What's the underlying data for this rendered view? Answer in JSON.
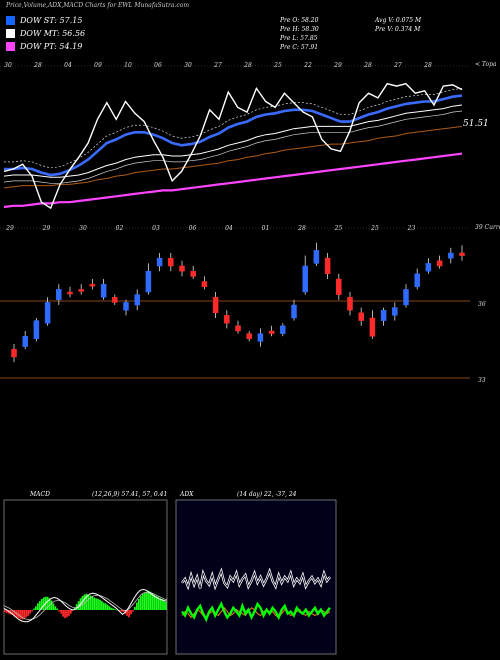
{
  "header": {
    "title": "Price,Volume,ADX,MACD Charts for EWL MunafaSutra.com"
  },
  "legend": [
    {
      "label": "DOW ST: 57.15",
      "color": "#1565ff"
    },
    {
      "label": "DOW MT: 56.56",
      "color": "#ffffff"
    },
    {
      "label": "DOW PT: 54.19",
      "color": "#ff44ff"
    }
  ],
  "stats": {
    "col1": [
      "Pre O: 58.20",
      "Pre H: 58.30",
      "Pre L: 57.85",
      "Pre C: 57.91"
    ],
    "col2": [
      "Avg V: 0.075 M",
      "Pre V: 0.374 M"
    ]
  },
  "chart_data": [
    {
      "type": "line",
      "panel": "price-ema",
      "price_label": "51.51",
      "top_ticks": [
        "30",
        "28",
        "04",
        "09",
        "10",
        "06",
        "30",
        "27",
        "28",
        "25",
        "22",
        "29",
        "28",
        "27",
        "28"
      ],
      "right_label": "< Topa",
      "series": [
        {
          "name": "close",
          "color": "#ffffff",
          "values": [
            50.6,
            50.8,
            51.2,
            50.2,
            48.0,
            47.5,
            49.5,
            50.7,
            51.8,
            53.0,
            55.0,
            56.4,
            55.0,
            56.5,
            55.5,
            54.8,
            53.2,
            51.8,
            49.8,
            50.6,
            52.0,
            53.6,
            55.8,
            55.0,
            57.3,
            56.0,
            55.6,
            57.6,
            56.5,
            56.0,
            57.2,
            56.4,
            55.6,
            55.2,
            53.3,
            52.5,
            52.3,
            54.0,
            56.4,
            57.2,
            56.8,
            58.0,
            57.8,
            58.0,
            57.2,
            57.4,
            56.2,
            57.8,
            57.9,
            57.5
          ]
        },
        {
          "name": "ema-fast",
          "color": "#3a6bff",
          "values": [
            50.8,
            50.8,
            50.9,
            50.8,
            50.5,
            50.3,
            50.4,
            50.7,
            51.1,
            51.6,
            52.3,
            53.0,
            53.3,
            53.7,
            53.9,
            53.9,
            53.7,
            53.4,
            53.0,
            52.8,
            52.9,
            53.1,
            53.5,
            53.8,
            54.3,
            54.6,
            54.8,
            55.2,
            55.4,
            55.5,
            55.7,
            55.8,
            55.8,
            55.7,
            55.4,
            55.1,
            54.8,
            54.8,
            55.1,
            55.4,
            55.6,
            55.9,
            56.1,
            56.3,
            56.4,
            56.5,
            56.5,
            56.7,
            56.9,
            57.0
          ]
        },
        {
          "name": "ema-mid",
          "color": "#ffffff",
          "values": [
            50.2,
            50.3,
            50.3,
            50.3,
            50.2,
            50.1,
            50.1,
            50.2,
            50.3,
            50.5,
            50.8,
            51.1,
            51.3,
            51.6,
            51.8,
            51.9,
            52.0,
            52.0,
            51.9,
            51.9,
            52.0,
            52.1,
            52.3,
            52.5,
            52.8,
            53.0,
            53.2,
            53.5,
            53.7,
            53.8,
            54.0,
            54.2,
            54.3,
            54.4,
            54.4,
            54.4,
            54.4,
            54.4,
            54.6,
            54.8,
            54.9,
            55.1,
            55.3,
            55.5,
            55.6,
            55.7,
            55.8,
            55.9,
            56.1,
            56.2
          ]
        },
        {
          "name": "ema-slow",
          "color": "#b05a14",
          "values": [
            49.2,
            49.3,
            49.4,
            49.4,
            49.4,
            49.4,
            49.5,
            49.5,
            49.6,
            49.7,
            49.9,
            50.0,
            50.2,
            50.3,
            50.5,
            50.6,
            50.7,
            50.8,
            50.8,
            50.9,
            51.0,
            51.1,
            51.2,
            51.3,
            51.5,
            51.6,
            51.8,
            51.9,
            52.1,
            52.2,
            52.4,
            52.5,
            52.6,
            52.7,
            52.8,
            52.9,
            52.9,
            53.0,
            53.1,
            53.2,
            53.4,
            53.5,
            53.6,
            53.8,
            53.9,
            54.0,
            54.1,
            54.2,
            54.3,
            54.4
          ]
        },
        {
          "name": "ema-long",
          "color": "#ff44ff",
          "values": [
            47.6,
            47.7,
            47.7,
            47.8,
            47.9,
            47.9,
            48.0,
            48.0,
            48.1,
            48.2,
            48.3,
            48.4,
            48.5,
            48.6,
            48.7,
            48.8,
            48.9,
            49.0,
            49.0,
            49.1,
            49.2,
            49.3,
            49.4,
            49.5,
            49.6,
            49.7,
            49.8,
            49.9,
            50.0,
            50.1,
            50.2,
            50.3,
            50.4,
            50.5,
            50.6,
            50.7,
            50.8,
            50.9,
            51.0,
            51.1,
            51.2,
            51.3,
            51.4,
            51.5,
            51.6,
            51.7,
            51.8,
            51.9,
            52.0,
            52.1
          ]
        }
      ]
    },
    {
      "type": "candlestick",
      "panel": "price-candles",
      "top_ticks": [
        "29",
        "29",
        "30",
        "02",
        "03",
        "06",
        "04",
        "01",
        "28",
        "25",
        "25",
        "23"
      ],
      "right_label": "39 Current",
      "y_labels": [
        "36",
        "33"
      ],
      "candles": [
        {
          "o": 35.0,
          "c": 35.3,
          "h": 35.5,
          "l": 34.8,
          "d": "down"
        },
        {
          "o": 35.4,
          "c": 35.8,
          "h": 36.0,
          "l": 35.3,
          "d": "up"
        },
        {
          "o": 35.7,
          "c": 36.4,
          "h": 36.5,
          "l": 35.6,
          "d": "up"
        },
        {
          "o": 36.3,
          "c": 37.1,
          "h": 37.3,
          "l": 36.2,
          "d": "up"
        },
        {
          "o": 37.2,
          "c": 37.6,
          "h": 37.8,
          "l": 37.0,
          "d": "up"
        },
        {
          "o": 37.5,
          "c": 37.5,
          "h": 37.7,
          "l": 37.3,
          "d": "down"
        },
        {
          "o": 37.6,
          "c": 37.6,
          "h": 37.8,
          "l": 37.4,
          "d": "down"
        },
        {
          "o": 37.8,
          "c": 37.8,
          "h": 38.0,
          "l": 37.6,
          "d": "down"
        },
        {
          "o": 37.8,
          "c": 37.3,
          "h": 38.0,
          "l": 37.2,
          "d": "up"
        },
        {
          "o": 37.3,
          "c": 37.1,
          "h": 37.4,
          "l": 37.0,
          "d": "down"
        },
        {
          "o": 37.1,
          "c": 36.8,
          "h": 37.2,
          "l": 36.6,
          "d": "up"
        },
        {
          "o": 37.0,
          "c": 37.4,
          "h": 37.6,
          "l": 36.8,
          "d": "up"
        },
        {
          "o": 37.5,
          "c": 38.3,
          "h": 38.6,
          "l": 37.4,
          "d": "up"
        },
        {
          "o": 38.5,
          "c": 38.8,
          "h": 39.0,
          "l": 38.3,
          "d": "up"
        },
        {
          "o": 38.5,
          "c": 38.8,
          "h": 39.0,
          "l": 38.3,
          "d": "down"
        },
        {
          "o": 38.5,
          "c": 38.3,
          "h": 38.7,
          "l": 38.1,
          "d": "down"
        },
        {
          "o": 38.3,
          "c": 38.1,
          "h": 38.5,
          "l": 38.0,
          "d": "down"
        },
        {
          "o": 37.9,
          "c": 37.7,
          "h": 38.1,
          "l": 37.6,
          "d": "down"
        },
        {
          "o": 37.3,
          "c": 36.7,
          "h": 37.5,
          "l": 36.5,
          "d": "down"
        },
        {
          "o": 36.6,
          "c": 36.3,
          "h": 36.8,
          "l": 36.1,
          "d": "down"
        },
        {
          "o": 36.2,
          "c": 36.0,
          "h": 36.4,
          "l": 35.9,
          "d": "down"
        },
        {
          "o": 35.9,
          "c": 35.7,
          "h": 36.0,
          "l": 35.6,
          "d": "down"
        },
        {
          "o": 35.6,
          "c": 35.9,
          "h": 36.1,
          "l": 35.4,
          "d": "up"
        },
        {
          "o": 36.0,
          "c": 35.9,
          "h": 36.2,
          "l": 35.8,
          "d": "down"
        },
        {
          "o": 35.9,
          "c": 36.2,
          "h": 36.3,
          "l": 35.8,
          "d": "up"
        },
        {
          "o": 36.5,
          "c": 37.0,
          "h": 37.2,
          "l": 36.4,
          "d": "up"
        },
        {
          "o": 37.5,
          "c": 38.5,
          "h": 38.9,
          "l": 37.4,
          "d": "up"
        },
        {
          "o": 38.6,
          "c": 39.1,
          "h": 39.4,
          "l": 38.5,
          "d": "up"
        },
        {
          "o": 38.8,
          "c": 38.2,
          "h": 39.0,
          "l": 38.0,
          "d": "down"
        },
        {
          "o": 38.0,
          "c": 37.4,
          "h": 38.2,
          "l": 37.2,
          "d": "down"
        },
        {
          "o": 37.3,
          "c": 36.8,
          "h": 37.5,
          "l": 36.6,
          "d": "down"
        },
        {
          "o": 36.7,
          "c": 36.4,
          "h": 36.9,
          "l": 36.2,
          "d": "down"
        },
        {
          "o": 36.5,
          "c": 35.8,
          "h": 36.8,
          "l": 35.7,
          "d": "down"
        },
        {
          "o": 36.4,
          "c": 36.8,
          "h": 36.9,
          "l": 36.2,
          "d": "up"
        },
        {
          "o": 36.9,
          "c": 36.6,
          "h": 37.1,
          "l": 36.4,
          "d": "up"
        },
        {
          "o": 37.0,
          "c": 37.6,
          "h": 37.8,
          "l": 36.9,
          "d": "up"
        },
        {
          "o": 37.7,
          "c": 38.2,
          "h": 38.4,
          "l": 37.6,
          "d": "up"
        },
        {
          "o": 38.3,
          "c": 38.6,
          "h": 38.8,
          "l": 38.2,
          "d": "up"
        },
        {
          "o": 38.5,
          "c": 38.7,
          "h": 38.9,
          "l": 38.4,
          "d": "down"
        },
        {
          "o": 38.8,
          "c": 39.0,
          "h": 39.2,
          "l": 38.6,
          "d": "up"
        },
        {
          "o": 39.0,
          "c": 38.9,
          "h": 39.3,
          "l": 38.7,
          "d": "down"
        }
      ]
    },
    {
      "type": "bar",
      "panel": "macd",
      "title": "MACD",
      "params": "(12,26,9) 57.41, 57, 0.41",
      "hist": [
        -0.3,
        -0.4,
        -0.5,
        -0.6,
        -0.7,
        -0.9,
        -1.0,
        -1.1,
        -1.2,
        -1.3,
        -1.2,
        -1.0,
        -0.8,
        -0.5,
        -0.2,
        0.2,
        0.5,
        0.9,
        1.2,
        1.5,
        1.7,
        1.8,
        1.8,
        1.6,
        1.3,
        0.9,
        0.5,
        0.2,
        -0.2,
        -0.5,
        -0.9,
        -1.1,
        -1.0,
        -0.8,
        -0.5,
        -0.1,
        0.3,
        0.8,
        1.2,
        1.6,
        1.9,
        2.1,
        2.2,
        2.1,
        2.0,
        1.9,
        1.7,
        1.6,
        1.5,
        1.4,
        1.2,
        1.0,
        0.9,
        0.7,
        0.5,
        0.3,
        0.2,
        0.1,
        0.0,
        -0.1,
        -0.2,
        -0.3,
        -0.5,
        -0.8,
        -1.0,
        -0.6,
        -0.2,
        0.4,
        1.0,
        1.5,
        1.9,
        2.2,
        2.4,
        2.5,
        2.6,
        2.5,
        2.3,
        2.1,
        1.9,
        1.8,
        1.6,
        1.5,
        1.3,
        1.1
      ],
      "macd_line": [
        0.2,
        0.0,
        -0.3,
        -0.6,
        -1.0,
        -1.3,
        -1.5,
        -1.6,
        -1.6,
        -1.4,
        -1.1,
        -0.6,
        -0.1,
        0.4,
        0.9,
        1.3,
        1.6,
        1.7,
        1.6,
        1.3,
        0.9,
        0.5,
        0.2,
        0.0,
        0.1,
        0.4,
        0.9,
        1.4,
        1.9,
        2.2,
        2.3,
        2.2,
        2.0,
        1.7,
        1.4,
        1.1,
        0.8,
        0.5,
        0.2,
        -0.2,
        -0.6,
        -0.3,
        0.3,
        1.0,
        1.7,
        2.3,
        2.7,
        2.8,
        2.7,
        2.4,
        2.1,
        1.8,
        1.6,
        1.4,
        1.3,
        1.2
      ],
      "signal_line": [
        0.6,
        0.4,
        0.2,
        -0.1,
        -0.4,
        -0.7,
        -1.0,
        -1.2,
        -1.3,
        -1.3,
        -1.2,
        -1.0,
        -0.7,
        -0.3,
        0.1,
        0.5,
        0.9,
        1.2,
        1.3,
        1.3,
        1.1,
        0.9,
        0.6,
        0.4,
        0.3,
        0.4,
        0.6,
        0.9,
        1.3,
        1.6,
        1.9,
        2.0,
        2.0,
        1.9,
        1.7,
        1.5,
        1.2,
        0.9,
        0.6,
        0.3,
        0.0,
        -0.1,
        0.1,
        0.5,
        1.0,
        1.5,
        2.0,
        2.3,
        2.4,
        2.4,
        2.3,
        2.1,
        1.9,
        1.7,
        1.5,
        1.4
      ],
      "ylim": [
        -6,
        15
      ]
    },
    {
      "type": "line",
      "panel": "adx",
      "title": "ADX",
      "params": "(14 day) 22, -37, 24",
      "series": [
        {
          "name": "+DI",
          "color": "#ffffff",
          "values": [
            37,
            39,
            35,
            41,
            36,
            40,
            34,
            42,
            38,
            36,
            41,
            35,
            39,
            43,
            37,
            35,
            40,
            38,
            42,
            36,
            39,
            41,
            35,
            38,
            42,
            37,
            40,
            36,
            39,
            43,
            38,
            35,
            41,
            37,
            40,
            38,
            42,
            36,
            39,
            37,
            41,
            35,
            38,
            40,
            37,
            39,
            36,
            42,
            38,
            40
          ]
        },
        {
          "name": "-DI",
          "color": "#00ff00",
          "values": [
            22,
            20,
            24,
            21,
            19,
            23,
            25,
            21,
            18,
            22,
            24,
            20,
            23,
            26,
            22,
            19,
            21,
            24,
            22,
            20,
            25,
            21,
            23,
            19,
            22,
            26,
            24,
            20,
            23,
            21,
            24,
            22,
            19,
            23,
            25,
            21,
            22,
            20,
            24,
            22,
            21,
            23,
            20,
            22,
            24,
            21,
            23,
            20,
            22,
            24
          ]
        },
        {
          "name": "ADX",
          "color": "#ff7a1a",
          "values": [
            20,
            22,
            21,
            19,
            21,
            23,
            22,
            20,
            19,
            21,
            22,
            21,
            20,
            22,
            24,
            22,
            20,
            21,
            23,
            22,
            21,
            20,
            22,
            24,
            23,
            21,
            20,
            22,
            23,
            21,
            22,
            20,
            19,
            21,
            23,
            22,
            20,
            21,
            22,
            23,
            21,
            20,
            22,
            21,
            20,
            21,
            23,
            22,
            21,
            22
          ]
        }
      ],
      "ylim": [
        0,
        80
      ]
    }
  ]
}
